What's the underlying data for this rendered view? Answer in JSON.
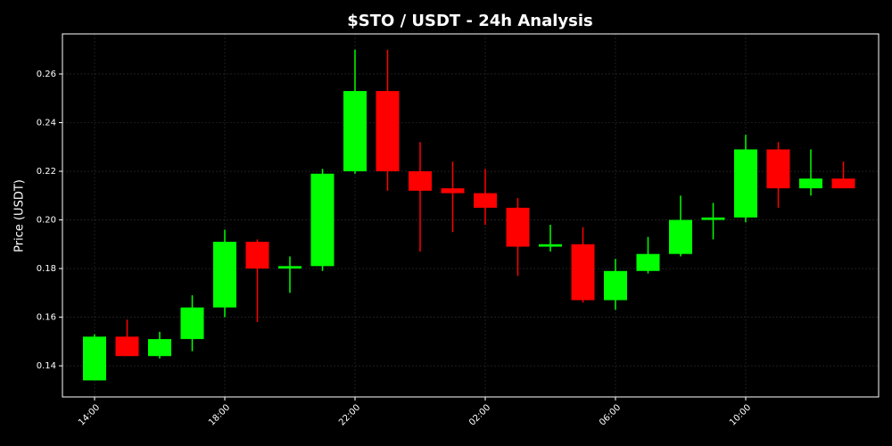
{
  "chart_data": {
    "type": "candlestick",
    "title": "$STO / USDT - 24h Analysis",
    "y_label": "Price (USDT)",
    "categories": [
      "14:00",
      null,
      null,
      null,
      "18:00",
      null,
      null,
      null,
      "22:00",
      null,
      null,
      null,
      "02:00",
      null,
      null,
      null,
      "06:00",
      null,
      null,
      null,
      "10:00",
      null,
      null,
      null
    ],
    "open": [
      0.134,
      0.152,
      0.144,
      0.151,
      0.164,
      0.191,
      0.18,
      0.181,
      0.22,
      0.253,
      0.22,
      0.213,
      0.211,
      0.205,
      0.189,
      0.19,
      0.167,
      0.179,
      0.186,
      0.2,
      0.201,
      0.229,
      0.213,
      0.217
    ],
    "high": [
      0.153,
      0.159,
      0.154,
      0.169,
      0.196,
      0.192,
      0.185,
      0.221,
      0.27,
      0.27,
      0.232,
      0.224,
      0.221,
      0.209,
      0.198,
      0.197,
      0.184,
      0.193,
      0.21,
      0.207,
      0.235,
      0.232,
      0.229,
      0.224
    ],
    "low": [
      0.134,
      0.144,
      0.143,
      0.146,
      0.16,
      0.158,
      0.17,
      0.179,
      0.219,
      0.212,
      0.187,
      0.195,
      0.198,
      0.177,
      0.187,
      0.166,
      0.163,
      0.178,
      0.185,
      0.192,
      0.199,
      0.205,
      0.21,
      0.213
    ],
    "close": [
      0.152,
      0.144,
      0.151,
      0.164,
      0.191,
      0.18,
      0.181,
      0.219,
      0.253,
      0.22,
      0.212,
      0.211,
      0.205,
      0.189,
      0.19,
      0.167,
      0.179,
      0.186,
      0.2,
      0.201,
      0.229,
      0.213,
      0.217,
      0.213
    ],
    "up_color": "#00ff00",
    "down_color": "#ff0000",
    "ylim": [
      0.1272,
      0.2765
    ],
    "yticks": [
      0.14,
      0.16,
      0.18,
      {
        "value": 0.2,
        "label": "0.20"
      },
      0.22,
      0.24,
      0.26
    ],
    "grid": true
  }
}
